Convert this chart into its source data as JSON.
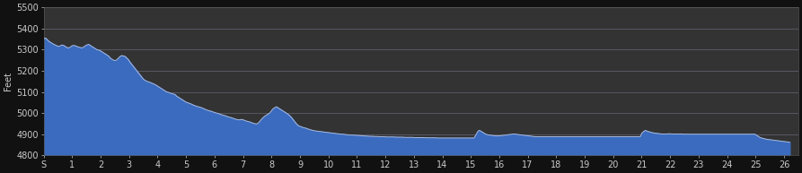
{
  "background_color": "#111111",
  "plot_bg_color": "#333333",
  "fill_color": "#3a6bbf",
  "line_color": "#aabbdd",
  "ylabel": "Feet",
  "ylim": [
    4800,
    5500
  ],
  "yticks": [
    4800,
    4900,
    5000,
    5100,
    5200,
    5300,
    5400,
    5500
  ],
  "xtick_labels": [
    "S",
    "1",
    "2",
    "3",
    "4",
    "5",
    "6",
    "7",
    "8",
    "9",
    "10",
    "11",
    "12",
    "13",
    "14",
    "15",
    "16",
    "17",
    "18",
    "19",
    "20",
    "21",
    "22",
    "23",
    "24",
    "25",
    "26"
  ],
  "grid_color": "#666677",
  "tick_color": "#cccccc",
  "label_color": "#cccccc",
  "elevation_profile": [
    5350,
    5355,
    5348,
    5340,
    5335,
    5330,
    5325,
    5322,
    5318,
    5315,
    5318,
    5322,
    5320,
    5315,
    5310,
    5308,
    5312,
    5318,
    5320,
    5318,
    5315,
    5312,
    5310,
    5308,
    5312,
    5318,
    5322,
    5325,
    5320,
    5315,
    5310,
    5305,
    5300,
    5298,
    5295,
    5290,
    5285,
    5280,
    5275,
    5270,
    5260,
    5255,
    5250,
    5248,
    5252,
    5260,
    5268,
    5272,
    5270,
    5268,
    5260,
    5252,
    5240,
    5230,
    5220,
    5210,
    5200,
    5190,
    5180,
    5170,
    5160,
    5155,
    5150,
    5148,
    5145,
    5142,
    5138,
    5135,
    5130,
    5125,
    5120,
    5115,
    5110,
    5105,
    5100,
    5098,
    5095,
    5092,
    5090,
    5088,
    5080,
    5075,
    5070,
    5065,
    5060,
    5055,
    5050,
    5048,
    5045,
    5042,
    5038,
    5035,
    5032,
    5030,
    5028,
    5025,
    5022,
    5018,
    5015,
    5012,
    5010,
    5008,
    5005,
    5002,
    5000,
    4998,
    4995,
    4992,
    4990,
    4988,
    4985,
    4982,
    4980,
    4978,
    4975,
    4972,
    4970,
    4968,
    4968,
    4970,
    4968,
    4965,
    4962,
    4960,
    4958,
    4955,
    4952,
    4950,
    4948,
    4952,
    4960,
    4970,
    4978,
    4985,
    4990,
    4995,
    5000,
    5010,
    5020,
    5025,
    5030,
    5025,
    5020,
    5015,
    5010,
    5005,
    5000,
    4995,
    4988,
    4980,
    4970,
    4960,
    4950,
    4942,
    4938,
    4935,
    4932,
    4930,
    4928,
    4925,
    4922,
    4920,
    4918,
    4916,
    4915,
    4914,
    4913,
    4912,
    4911,
    4910,
    4909,
    4908,
    4907,
    4906,
    4905,
    4904,
    4903,
    4902,
    4901,
    4900,
    4900,
    4899,
    4898,
    4897,
    4897,
    4896,
    4896,
    4895,
    4895,
    4894,
    4894,
    4893,
    4892,
    4892,
    4891,
    4891,
    4890,
    4890,
    4890,
    4889,
    4889,
    4889,
    4888,
    4888,
    4888,
    4888,
    4887,
    4887,
    4887,
    4887,
    4887,
    4887,
    4886,
    4886,
    4886,
    4886,
    4886,
    4885,
    4885,
    4885,
    4885,
    4885,
    4885,
    4884,
    4884,
    4884,
    4884,
    4884,
    4884,
    4884,
    4883,
    4883,
    4883,
    4883,
    4883,
    4883,
    4883,
    4882,
    4882,
    4882,
    4882,
    4882,
    4882,
    4882,
    4882,
    4882,
    4882,
    4882,
    4882,
    4882,
    4882,
    4882,
    4882,
    4882,
    4882,
    4882,
    4882,
    4882,
    4882,
    4882,
    4895,
    4910,
    4918,
    4915,
    4910,
    4905,
    4900,
    4898,
    4896,
    4895,
    4894,
    4893,
    4892,
    4892,
    4892,
    4893,
    4894,
    4895,
    4896,
    4897,
    4898,
    4899,
    4900,
    4901,
    4900,
    4899,
    4898,
    4897,
    4896,
    4895,
    4894,
    4893,
    4892,
    4891,
    4890,
    4889,
    4888,
    4888,
    4888,
    4888,
    4888,
    4888,
    4888,
    4888,
    4888,
    4888,
    4888,
    4888,
    4888,
    4888,
    4888,
    4888,
    4888,
    4888,
    4888,
    4888,
    4888,
    4888,
    4888,
    4888,
    4888,
    4888,
    4888,
    4888,
    4888,
    4888,
    4888,
    4888,
    4888,
    4888,
    4888,
    4888,
    4888,
    4888,
    4888,
    4888,
    4888,
    4888,
    4888,
    4888,
    4888,
    4888,
    4888,
    4888,
    4888,
    4888,
    4888,
    4888,
    4888,
    4888,
    4888,
    4888,
    4888,
    4888,
    4888,
    4888,
    4888,
    4888,
    4888,
    4888,
    4905,
    4912,
    4918,
    4915,
    4912,
    4910,
    4908,
    4906,
    4905,
    4904,
    4903,
    4902,
    4901,
    4901,
    4901,
    4901,
    4902,
    4902,
    4901,
    4901,
    4901,
    4901,
    4901,
    4901,
    4901,
    4900,
    4900,
    4900,
    4900,
    4900,
    4900,
    4900,
    4900,
    4900,
    4900,
    4900,
    4900,
    4900,
    4900,
    4900,
    4900,
    4900,
    4900,
    4900,
    4900,
    4900,
    4900,
    4900,
    4900,
    4900,
    4900,
    4900,
    4900,
    4900,
    4900,
    4900,
    4900,
    4900,
    4900,
    4900,
    4900,
    4900,
    4900,
    4900,
    4900,
    4900,
    4900,
    4900,
    4900,
    4895,
    4890,
    4885,
    4882,
    4880,
    4878,
    4876,
    4875,
    4874,
    4873,
    4872,
    4871,
    4870,
    4869,
    4868,
    4867,
    4866,
    4865,
    4864,
    4863,
    4862
  ]
}
